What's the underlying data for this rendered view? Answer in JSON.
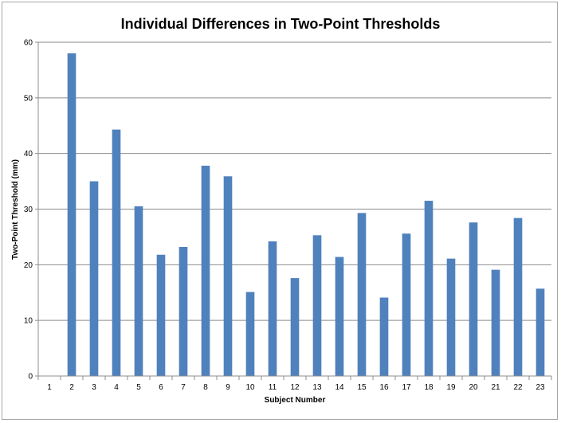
{
  "chart_data": {
    "type": "bar",
    "title": "Individual Differences in Two-Point Thresholds",
    "xlabel": "Subject Number",
    "ylabel": "Two-Point Threshold (mm)",
    "ylim": [
      0,
      60
    ],
    "yticks": [
      0,
      10,
      20,
      30,
      40,
      50,
      60
    ],
    "grid": true,
    "legend": "none",
    "bar_color": "#4f81bd",
    "categories": [
      "1",
      "2",
      "3",
      "4",
      "5",
      "6",
      "7",
      "8",
      "9",
      "10",
      "11",
      "12",
      "13",
      "14",
      "15",
      "16",
      "17",
      "18",
      "19",
      "20",
      "21",
      "22",
      "23"
    ],
    "values": [
      0,
      58,
      35,
      44.3,
      30.5,
      21.8,
      23.2,
      37.8,
      35.9,
      15.1,
      24.2,
      17.6,
      25.3,
      21.4,
      29.3,
      14.1,
      25.6,
      31.5,
      21.1,
      27.6,
      19.1,
      28.4,
      15.7
    ]
  }
}
